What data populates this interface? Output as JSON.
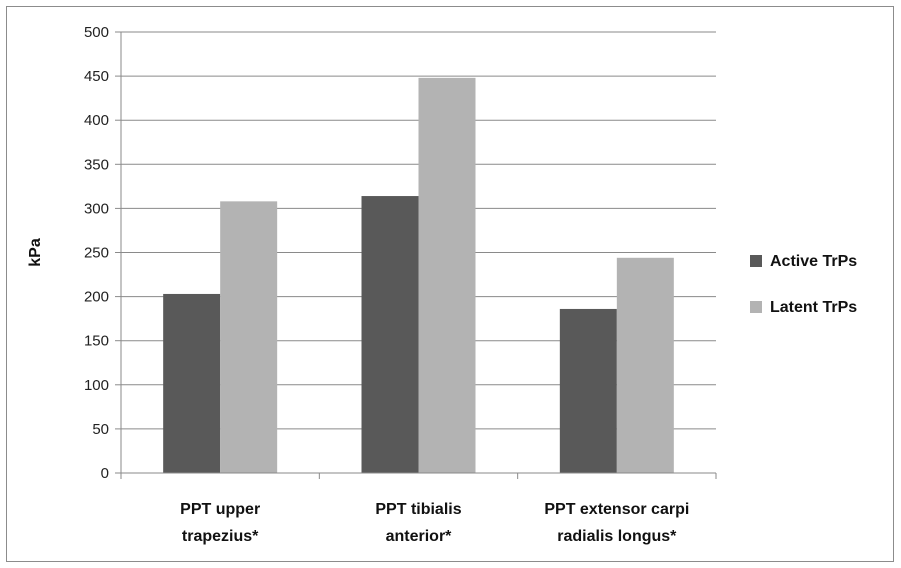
{
  "chart_data": {
    "type": "bar",
    "title": "",
    "xlabel": "",
    "ylabel": "kPa",
    "ylim": [
      0,
      500
    ],
    "yticks": [
      0,
      50,
      100,
      150,
      200,
      250,
      300,
      350,
      400,
      450,
      500
    ],
    "grid": true,
    "legend_position": "right",
    "categories": [
      [
        "PPT upper",
        "trapezius*"
      ],
      [
        "PPT tibialis",
        "anterior*"
      ],
      [
        "PPT extensor  carpi",
        "radialis longus*"
      ]
    ],
    "series": [
      {
        "name": "Active TrPs",
        "color": "#595959",
        "values": [
          203,
          314,
          186
        ]
      },
      {
        "name": "Latent TrPs",
        "color": "#b3b3b3",
        "values": [
          308,
          448,
          244
        ]
      }
    ]
  }
}
